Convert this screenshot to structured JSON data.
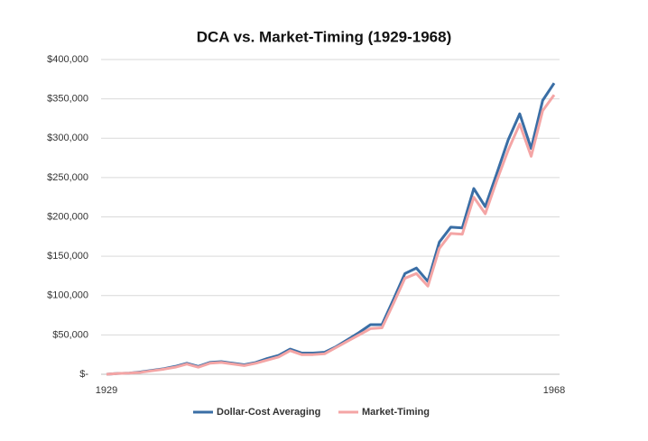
{
  "chart_data": {
    "type": "line",
    "title": "DCA vs. Market-Timing (1929-1968)",
    "categories": [
      "1929",
      null,
      null,
      null,
      null,
      null,
      null,
      null,
      null,
      null,
      null,
      null,
      null,
      null,
      null,
      null,
      null,
      null,
      null,
      null,
      null,
      null,
      null,
      null,
      null,
      null,
      null,
      null,
      null,
      null,
      null,
      null,
      null,
      null,
      null,
      null,
      null,
      null,
      null,
      "1968"
    ],
    "series": [
      {
        "name": "Dollar-Cost Averaging",
        "color": "#3a6ea5",
        "values": [
          0,
          1000,
          1500,
          3000,
          5000,
          7000,
          10000,
          14000,
          10000,
          15000,
          16000,
          14000,
          12000,
          15000,
          20000,
          24000,
          32000,
          27000,
          27000,
          28000,
          35000,
          44000,
          53000,
          63000,
          63000,
          95000,
          128000,
          135000,
          118000,
          168000,
          187000,
          186000,
          236000,
          213000,
          255000,
          298000,
          331000,
          287000,
          348000,
          370000
        ]
      },
      {
        "name": "Market-Timing",
        "color": "#f4a5a5",
        "values": [
          0,
          1000,
          1500,
          2500,
          4500,
          6500,
          9000,
          13000,
          9000,
          14000,
          15000,
          13000,
          11000,
          14000,
          18000,
          22000,
          30000,
          25000,
          25000,
          26000,
          34000,
          42000,
          50000,
          58000,
          59000,
          90000,
          122000,
          128000,
          112000,
          160000,
          179000,
          178000,
          225000,
          204000,
          246000,
          285000,
          318000,
          277000,
          335000,
          355000
        ]
      }
    ],
    "ylim": [
      0,
      400000
    ],
    "yticks": [
      {
        "value": 0,
        "label": "$-"
      },
      {
        "value": 50000,
        "label": "$50,000"
      },
      {
        "value": 100000,
        "label": "$100,000"
      },
      {
        "value": 150000,
        "label": "$150,000"
      },
      {
        "value": 200000,
        "label": "$200,000"
      },
      {
        "value": 250000,
        "label": "$250,000"
      },
      {
        "value": 300000,
        "label": "$300,000"
      },
      {
        "value": 350000,
        "label": "$350,000"
      },
      {
        "value": 400000,
        "label": "$400,000"
      }
    ],
    "grid": true,
    "legend": "bottom"
  }
}
